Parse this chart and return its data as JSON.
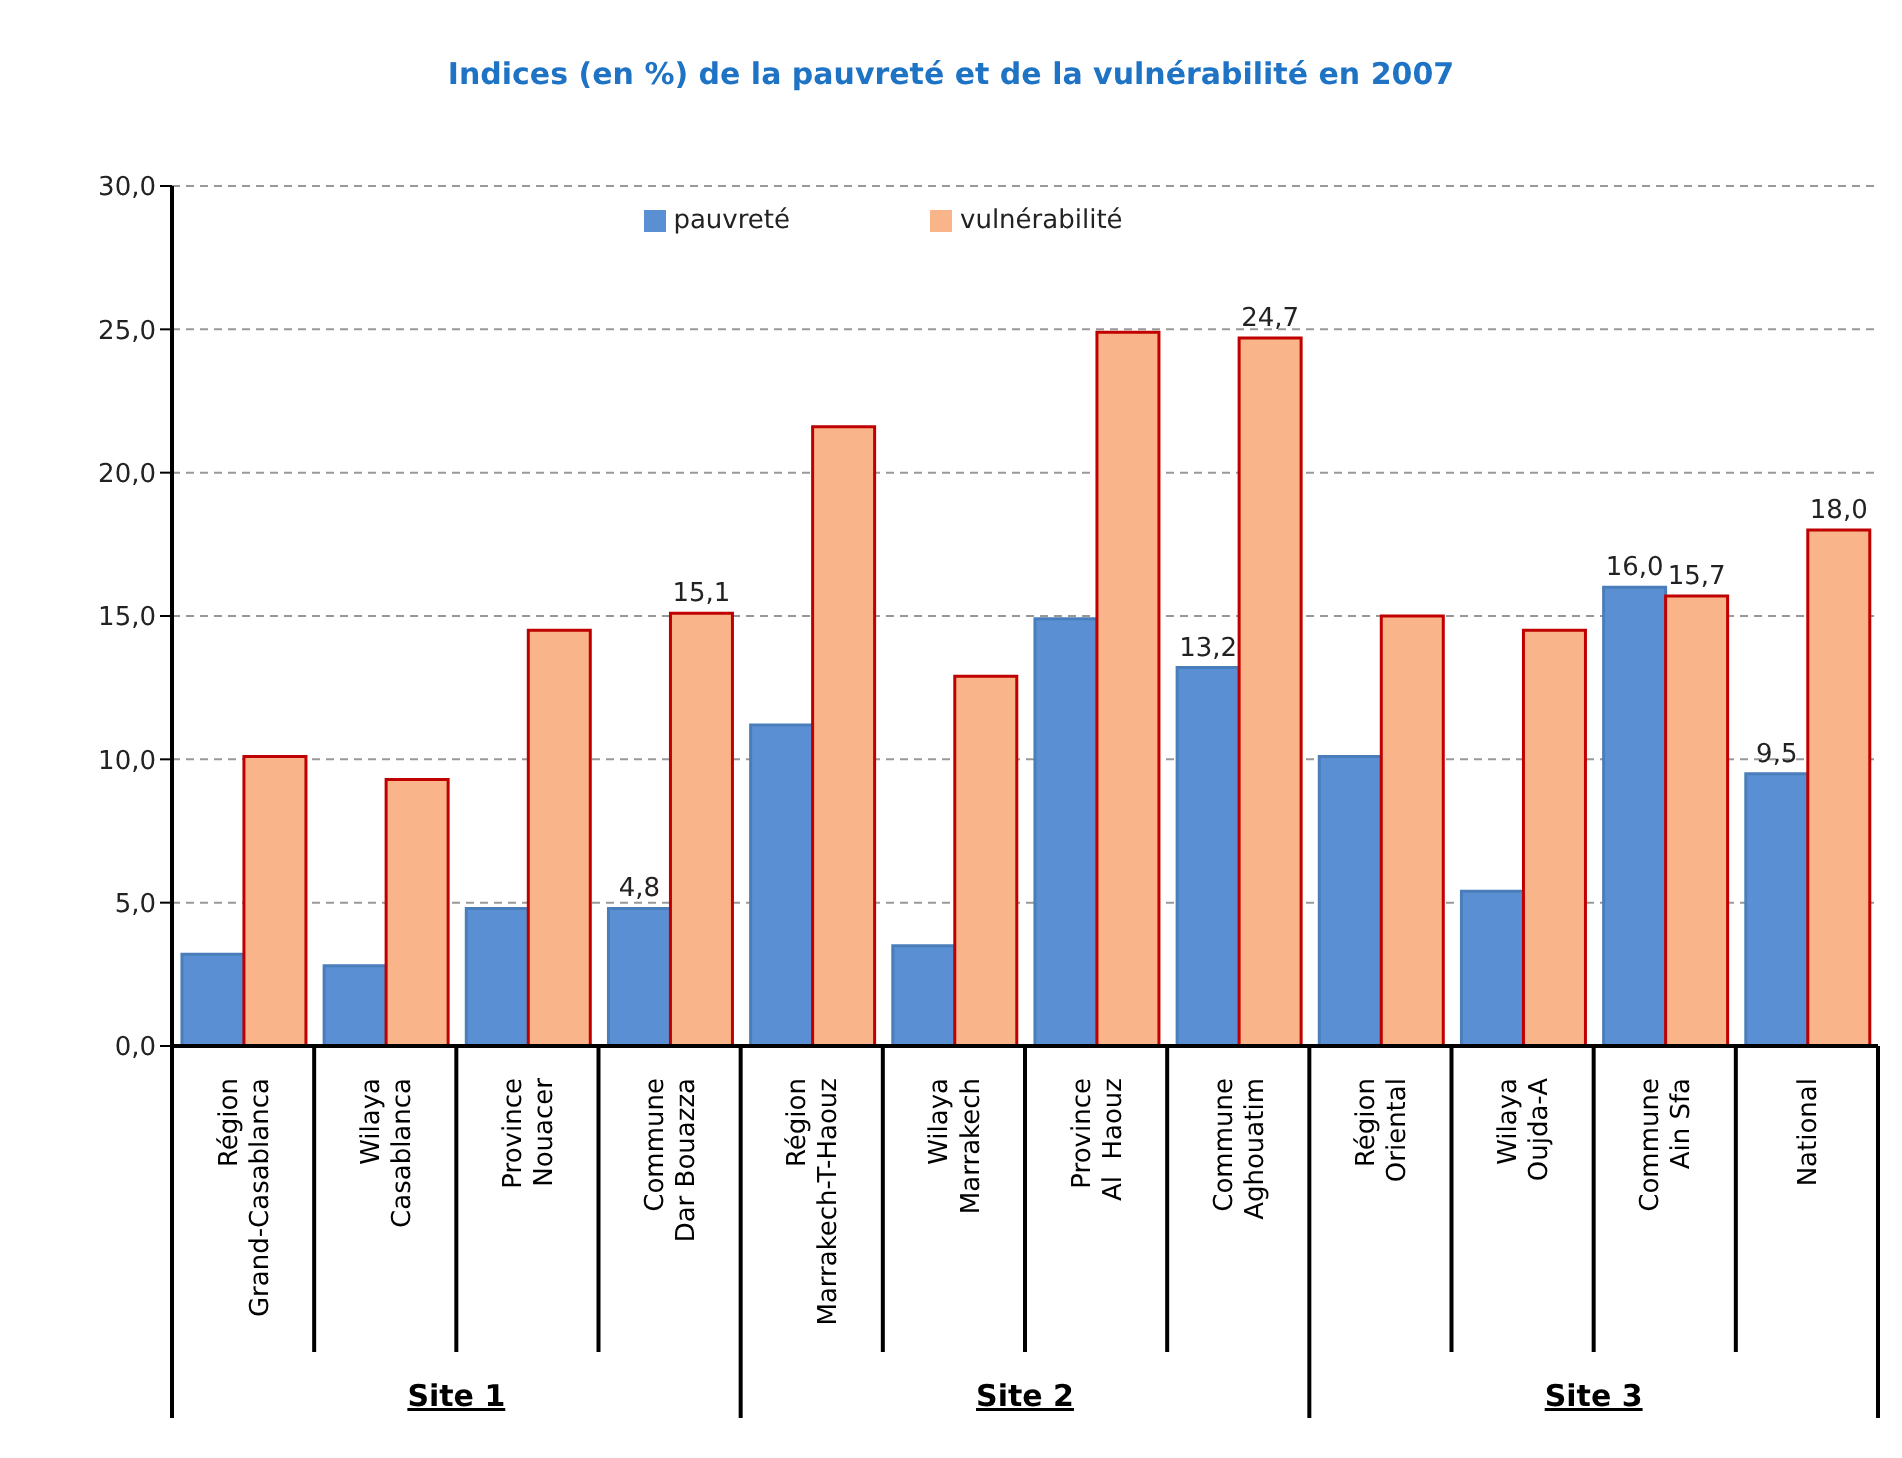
{
  "chart_data": {
    "type": "bar",
    "title": "Indices (en %) de la pauvreté et de la vulnérabilité en 2007",
    "categories": [
      "Région\nGrand-Casablanca",
      "Wilaya\nCasablanca",
      "Province\nNouacer",
      "Commune\nDar Bouazza",
      "Région\nMarrakech-T-Haouz",
      "Wilaya\nMarrakech",
      "Province\nAl  Haouz",
      "Commune\nAghouatim",
      "Région\nOriental",
      "Wilaya\nOujda-A",
      "Commune\nAin Sfa",
      "National"
    ],
    "series": [
      {
        "name": "pauvreté",
        "color": "#5b8fd3",
        "values": [
          3.2,
          2.8,
          4.8,
          4.8,
          11.2,
          3.5,
          14.9,
          13.2,
          10.1,
          5.4,
          16.0,
          9.5
        ],
        "value_labels": [
          null,
          null,
          null,
          "4,8",
          null,
          null,
          null,
          "13,2",
          null,
          null,
          "16,0",
          "9,5"
        ]
      },
      {
        "name": "vulnérabilité",
        "color": "#f9b48a",
        "values": [
          10.1,
          9.3,
          14.5,
          15.1,
          21.6,
          12.9,
          24.9,
          24.7,
          15.0,
          14.5,
          15.7,
          18.0
        ],
        "value_labels": [
          null,
          null,
          null,
          "15,1",
          null,
          null,
          null,
          "24,7",
          null,
          null,
          "15,7",
          "18,0"
        ]
      }
    ],
    "annotations": [
      "Site 1",
      "Site 2",
      "Site 3"
    ],
    "ylim": [
      0,
      30
    ],
    "yticks": [
      {
        "value": 0,
        "label": "0,0"
      },
      {
        "value": 5,
        "label": "5,0"
      },
      {
        "value": 10,
        "label": "10,0"
      },
      {
        "value": 15,
        "label": "15,0"
      },
      {
        "value": 20,
        "label": "20,0"
      },
      {
        "value": 25,
        "label": "25,0"
      },
      {
        "value": 30,
        "label": "30,0"
      }
    ],
    "grid": "y",
    "legend": "top"
  }
}
